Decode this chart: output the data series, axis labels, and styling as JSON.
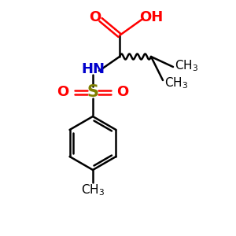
{
  "bg_color": "#ffffff",
  "atom_colors": {
    "O": "#ff0000",
    "N": "#0000cc",
    "S": "#808000",
    "C": "#000000"
  },
  "font_size_atoms": 13,
  "font_size_small": 10,
  "lw": 1.8
}
